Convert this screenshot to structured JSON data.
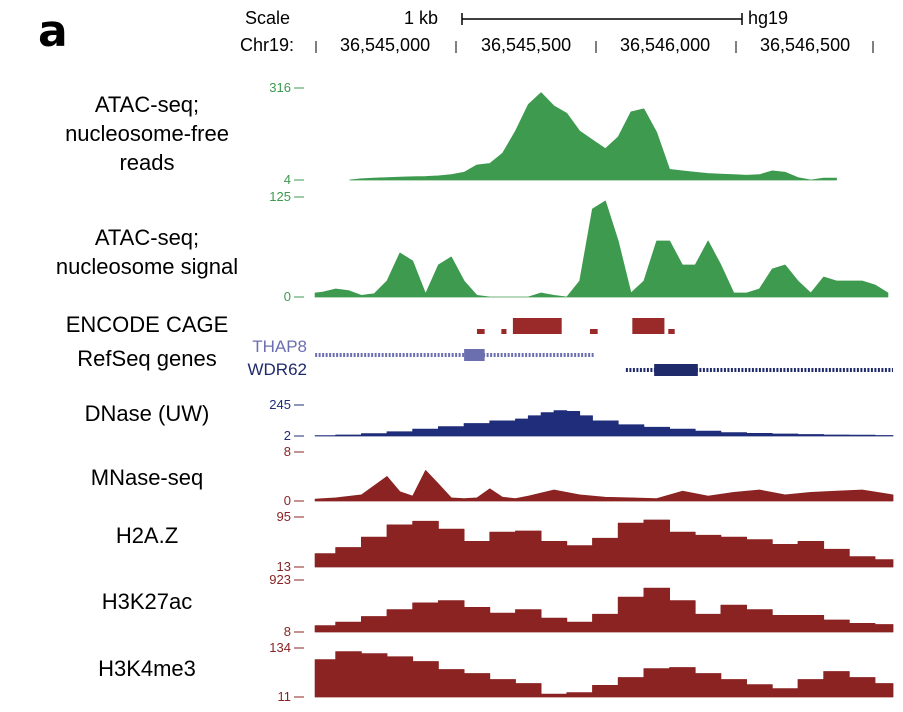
{
  "panel_label": "a",
  "header": {
    "scale_label": "Scale",
    "scale_bar_label": "1 kb",
    "genome": "hg19",
    "chrom_label": "Chr19:",
    "positions": [
      "36,545,000",
      "36,545,500",
      "36,546,000",
      "36,546,500"
    ]
  },
  "colors": {
    "atac": "#3d9a4f",
    "cage": "#9a2a2a",
    "refseq_thap8": "#6b6fb0",
    "refseq_wdr62": "#1f2a6b",
    "dnase": "#1f2d7a",
    "histone": "#8b2323"
  },
  "chart_data": {
    "type": "area",
    "x_unit": "chr19 position (bp)",
    "xlim": [
      36544450,
      36546720
    ],
    "tracks": [
      {
        "name": "ATAC-seq; nucleosome-free reads",
        "label_lines": [
          "ATAC-seq;",
          "nucleosome-free",
          "reads"
        ],
        "color": "#3d9a4f",
        "ylim_labels": [
          "316",
          "4"
        ],
        "ylim": [
          4,
          316
        ],
        "x": [
          36544605,
          36544650,
          36544700,
          36544750,
          36544800,
          36544850,
          36544900,
          36544950,
          36545000,
          36545050,
          36545100,
          36545150,
          36545200,
          36545250,
          36545300,
          36545350,
          36545400,
          36545450,
          36545500,
          36545550,
          36545600,
          36545650,
          36545700,
          36545750,
          36545800,
          36545850,
          36545900,
          36545950,
          36546000,
          36546050,
          36546100,
          36546150,
          36546200,
          36546250,
          36546300,
          36546350,
          36546400,
          36546450,
          36546500
        ],
        "values": [
          4,
          8,
          10,
          12,
          14,
          15,
          16,
          18,
          22,
          30,
          55,
          60,
          95,
          170,
          260,
          300,
          255,
          230,
          170,
          140,
          110,
          150,
          235,
          245,
          165,
          40,
          35,
          30,
          26,
          24,
          22,
          20,
          22,
          35,
          30,
          12,
          4,
          10,
          10
        ]
      },
      {
        "name": "ATAC-seq; nucleosome signal",
        "label_lines": [
          "ATAC-seq;",
          "nucleosome signal"
        ],
        "color": "#3d9a4f",
        "ylim_labels": [
          "125",
          "0"
        ],
        "ylim": [
          0,
          125
        ],
        "x": [
          36544470,
          36544500,
          36544550,
          36544600,
          36544650,
          36544700,
          36544750,
          36544800,
          36544850,
          36544900,
          36544950,
          36545000,
          36545050,
          36545100,
          36545150,
          36545200,
          36545250,
          36545300,
          36545350,
          36545400,
          36545450,
          36545500,
          36545550,
          36545600,
          36545650,
          36545700,
          36545750,
          36545800,
          36545850,
          36545900,
          36545950,
          36546000,
          36546050,
          36546100,
          36546150,
          36546200,
          36546250,
          36546300,
          36546350,
          36546400,
          36546450,
          36546500,
          36546550,
          36546600,
          36546650,
          36546700
        ],
        "values": [
          5,
          6,
          10,
          8,
          2,
          4,
          20,
          55,
          45,
          4,
          40,
          50,
          20,
          2,
          0,
          0,
          0,
          0,
          5,
          2,
          0,
          20,
          110,
          120,
          70,
          5,
          20,
          70,
          70,
          40,
          40,
          70,
          40,
          5,
          5,
          10,
          35,
          40,
          20,
          5,
          25,
          20,
          20,
          20,
          15,
          5
        ]
      },
      {
        "name": "ENCODE CAGE",
        "label_lines": [
          "ENCODE CAGE"
        ],
        "color": "#9a2a2a",
        "features": [
          [
            36545100,
            36545130
          ],
          [
            36545195,
            36545215
          ],
          [
            36545240,
            36545430
          ],
          [
            36545540,
            36545570
          ],
          [
            36545705,
            36545830
          ],
          [
            36545845,
            36545870
          ]
        ]
      },
      {
        "name": "RefSeq genes",
        "label_lines": [
          "RefSeq genes"
        ],
        "genes": [
          {
            "name": "THAP8",
            "color": "#6b6fb0",
            "start": 36544470,
            "end": 36545560,
            "cds": [
              36545050,
              36545130
            ]
          },
          {
            "name": "WDR62",
            "color": "#1f2a6b",
            "start": 36545680,
            "end": 36546720,
            "cds": [
              36545790,
              36545960
            ]
          }
        ]
      },
      {
        "name": "DNase (UW)",
        "label_lines": [
          "DNase (UW)"
        ],
        "color": "#1f2d7a",
        "ylim_labels": [
          "245",
          "2"
        ],
        "ylim": [
          2,
          245
        ],
        "x": [
          36544470,
          36544550,
          36544650,
          36544750,
          36544850,
          36544950,
          36545050,
          36545150,
          36545250,
          36545300,
          36545350,
          36545400,
          36545450,
          36545500,
          36545550,
          36545650,
          36545750,
          36545850,
          36545950,
          36546050,
          36546150,
          36546250,
          36546350,
          36546450,
          36546550,
          36546650,
          36546720
        ],
        "values": [
          4,
          10,
          20,
          35,
          55,
          75,
          100,
          120,
          135,
          160,
          185,
          200,
          195,
          160,
          120,
          90,
          70,
          55,
          40,
          28,
          22,
          18,
          14,
          10,
          8,
          6,
          5
        ]
      },
      {
        "name": "MNase-seq",
        "label_lines": [
          "MNase-seq"
        ],
        "color": "#8b2323",
        "ylim_labels": [
          "8",
          "0"
        ],
        "ylim": [
          0,
          8
        ],
        "x": [
          36544470,
          36544550,
          36544650,
          36544750,
          36544800,
          36544850,
          36544900,
          36544950,
          36545000,
          36545050,
          36545100,
          36545150,
          36545200,
          36545250,
          36545300,
          36545400,
          36545500,
          36545600,
          36545700,
          36545800,
          36545900,
          36546000,
          36546100,
          36546200,
          36546300,
          36546400,
          36546500,
          36546600,
          36546720
        ],
        "values": [
          0.3,
          0.5,
          1.0,
          4.0,
          1.5,
          0.8,
          5.0,
          2.8,
          0.5,
          0.4,
          0.5,
          2.0,
          0.6,
          0.4,
          0.8,
          1.8,
          1.0,
          0.6,
          0.5,
          0.4,
          1.6,
          0.8,
          1.4,
          1.8,
          1.0,
          1.4,
          1.6,
          1.8,
          1.0
        ]
      },
      {
        "name": "H2A.Z",
        "label_lines": [
          "H2A.Z"
        ],
        "color": "#8b2323",
        "ylim_labels": [
          "95",
          "13"
        ],
        "ylim": [
          13,
          95
        ],
        "x": [
          36544470,
          36544550,
          36544650,
          36544750,
          36544850,
          36544950,
          36545050,
          36545150,
          36545250,
          36545350,
          36545450,
          36545550,
          36545650,
          36545750,
          36545850,
          36545950,
          36546050,
          36546150,
          36546250,
          36546350,
          36546450,
          36546550,
          36546650,
          36546720
        ],
        "values": [
          35,
          45,
          62,
          82,
          88,
          75,
          55,
          70,
          72,
          55,
          48,
          60,
          85,
          90,
          70,
          65,
          62,
          58,
          50,
          55,
          42,
          30,
          25,
          22
        ]
      },
      {
        "name": "H3K27ac",
        "label_lines": [
          "H3K27ac"
        ],
        "color": "#8b2323",
        "ylim_labels": [
          "923",
          "8"
        ],
        "ylim": [
          8,
          923
        ],
        "x": [
          36544470,
          36544550,
          36544650,
          36544750,
          36544850,
          36544950,
          36545050,
          36545150,
          36545250,
          36545350,
          36545450,
          36545550,
          36545650,
          36545750,
          36545850,
          36545950,
          36546050,
          36546150,
          36546250,
          36546350,
          36546450,
          36546550,
          36546650,
          36546720
        ],
        "values": [
          120,
          180,
          280,
          400,
          520,
          560,
          440,
          340,
          400,
          250,
          180,
          320,
          620,
          780,
          560,
          320,
          480,
          400,
          300,
          300,
          220,
          160,
          140,
          120
        ]
      },
      {
        "name": "H3K4me3",
        "label_lines": [
          "H3K4me3"
        ],
        "color": "#8b2323",
        "ylim_labels": [
          "134",
          "11"
        ],
        "ylim": [
          11,
          134
        ],
        "x": [
          36544470,
          36544550,
          36544650,
          36544750,
          36544850,
          36544950,
          36545050,
          36545150,
          36545250,
          36545350,
          36545450,
          36545550,
          36545650,
          36545750,
          36545850,
          36545950,
          36546050,
          36546150,
          36546250,
          36546350,
          36546450,
          36546550,
          36546650,
          36546720
        ],
        "values": [
          105,
          125,
          120,
          112,
          100,
          80,
          70,
          55,
          45,
          18,
          22,
          40,
          60,
          82,
          85,
          70,
          55,
          42,
          32,
          55,
          75,
          60,
          45,
          40
        ]
      }
    ]
  }
}
